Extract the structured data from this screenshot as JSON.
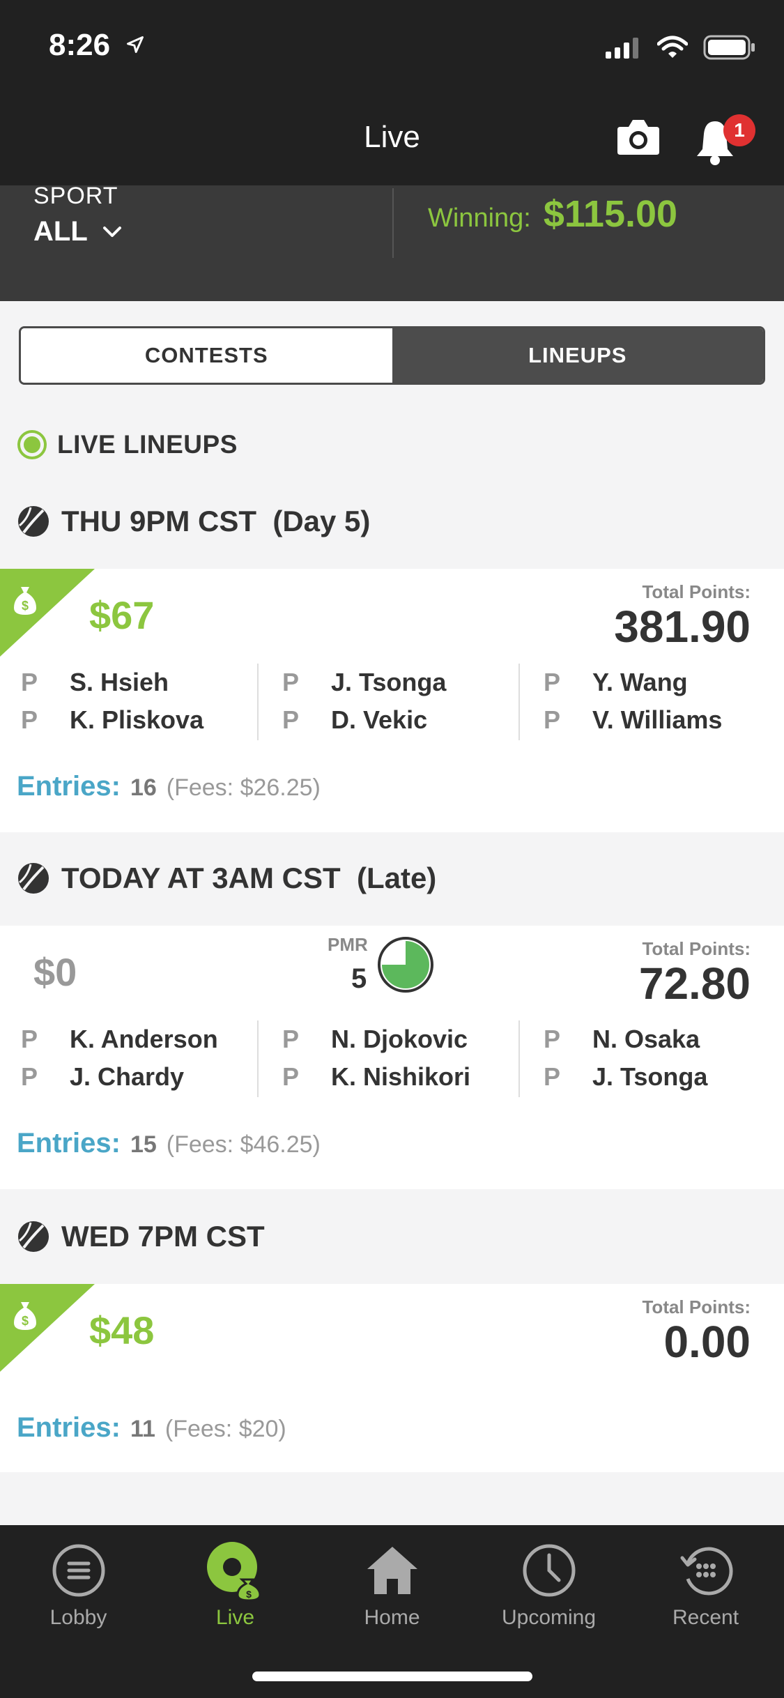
{
  "status": {
    "time": "8:26"
  },
  "nav": {
    "title": "Live",
    "notification_count": "1"
  },
  "filter": {
    "sport_label": "SPORT",
    "sport_value": "ALL",
    "winning_label": "Winning:",
    "winning_value": "$115.00"
  },
  "segments": {
    "contests": "CONTESTS",
    "lineups": "LINEUPS",
    "selected": "LINEUPS"
  },
  "live_header": "LIVE LINEUPS",
  "groups": [
    {
      "title": "THU 9PM CST  (Day 5)",
      "amount": "$67",
      "total_points_label": "Total Points:",
      "total_points": "381.90",
      "players": [
        [
          {
            "pos": "P",
            "name": "S. Hsieh"
          },
          {
            "pos": "P",
            "name": "K. Pliskova"
          }
        ],
        [
          {
            "pos": "P",
            "name": "J. Tsonga"
          },
          {
            "pos": "P",
            "name": "D. Vekic"
          }
        ],
        [
          {
            "pos": "P",
            "name": "Y. Wang"
          },
          {
            "pos": "P",
            "name": "V. Williams"
          }
        ]
      ],
      "entries_label": "Entries:",
      "entries_count": "16",
      "entries_fees": "(Fees: $26.25)"
    },
    {
      "title": "TODAY AT 3AM CST  (Late)",
      "amount": "$0",
      "pmr_label": "PMR",
      "pmr_value": "5",
      "total_points_label": "Total Points:",
      "total_points": "72.80",
      "players": [
        [
          {
            "pos": "P",
            "name": "K. Anderson"
          },
          {
            "pos": "P",
            "name": "J. Chardy"
          }
        ],
        [
          {
            "pos": "P",
            "name": "N. Djokovic"
          },
          {
            "pos": "P",
            "name": "K. Nishikori"
          }
        ],
        [
          {
            "pos": "P",
            "name": "N. Osaka"
          },
          {
            "pos": "P",
            "name": "J. Tsonga"
          }
        ]
      ],
      "entries_label": "Entries:",
      "entries_count": "15",
      "entries_fees": "(Fees: $46.25)"
    },
    {
      "title": "WED 7PM CST",
      "amount": "$48",
      "total_points_label": "Total Points:",
      "total_points": "0.00",
      "entries_label": "Entries:",
      "entries_count": "11",
      "entries_fees": "(Fees: $20)"
    }
  ],
  "tabs": [
    {
      "label": "Lobby",
      "icon": "menu-circle-icon"
    },
    {
      "label": "Live",
      "icon": "live-icon"
    },
    {
      "label": "Home",
      "icon": "home-icon"
    },
    {
      "label": "Upcoming",
      "icon": "clock-icon"
    },
    {
      "label": "Recent",
      "icon": "history-icon"
    }
  ],
  "colors": {
    "accent": "#8cc63f",
    "entries": "#4aa6c7",
    "dark": "#212121",
    "badge": "#e03131"
  }
}
